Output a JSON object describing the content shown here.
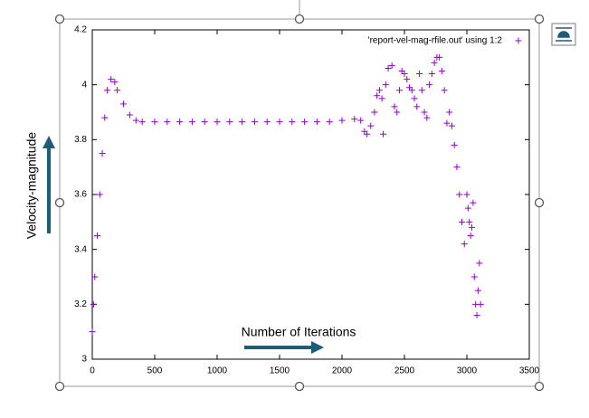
{
  "chart_data": {
    "type": "scatter",
    "xlabel": "Number of Iterations",
    "ylabel": "Velocity-magnitude",
    "xlim": [
      0,
      3500
    ],
    "xticks": [
      0,
      500,
      1000,
      1500,
      2000,
      2500,
      3000,
      3500
    ],
    "ylim": [
      3,
      4.2
    ],
    "yticks": [
      3,
      3.2,
      3.4,
      3.6,
      3.8,
      4,
      4.2
    ],
    "legend": "top-right",
    "series": [
      {
        "name": "'report-vel-mag-rfile.out' using 1:2",
        "color": "#9400d3",
        "x": [
          0,
          10,
          20,
          40,
          60,
          80,
          100,
          120,
          150,
          180,
          200,
          250,
          300,
          350,
          400,
          500,
          600,
          700,
          800,
          900,
          1000,
          1100,
          1200,
          1300,
          1400,
          1500,
          1600,
          1700,
          1800,
          1900,
          2000,
          2100,
          2150,
          2180,
          2200,
          2230,
          2260,
          2280,
          2300,
          2320,
          2330,
          2350,
          2370,
          2400,
          2420,
          2440,
          2460,
          2480,
          2500,
          2520,
          2540,
          2560,
          2580,
          2600,
          2620,
          2640,
          2660,
          2680,
          2700,
          2720,
          2740,
          2760,
          2780,
          2800,
          2820,
          2840,
          2860,
          2880,
          2900,
          2920,
          2940,
          2960,
          2980,
          3000,
          3010,
          3020,
          3030,
          3040,
          3050,
          3060,
          3070,
          3080,
          3090,
          3100,
          3110
        ],
        "values": [
          3.1,
          3.2,
          3.3,
          3.45,
          3.6,
          3.75,
          3.88,
          3.98,
          4.02,
          4.01,
          3.98,
          3.93,
          3.89,
          3.87,
          3.865,
          3.865,
          3.865,
          3.865,
          3.865,
          3.865,
          3.865,
          3.865,
          3.865,
          3.865,
          3.865,
          3.865,
          3.865,
          3.865,
          3.865,
          3.865,
          3.87,
          3.875,
          3.87,
          3.83,
          3.82,
          3.85,
          3.9,
          3.96,
          3.98,
          3.95,
          3.82,
          4.0,
          4.06,
          4.07,
          3.92,
          3.9,
          3.98,
          4.05,
          4.04,
          4.02,
          3.99,
          3.98,
          3.95,
          3.92,
          4.04,
          3.98,
          3.9,
          3.88,
          4.0,
          4.04,
          4.08,
          4.1,
          4.1,
          4.05,
          3.98,
          3.86,
          3.9,
          3.85,
          3.78,
          3.7,
          3.6,
          3.5,
          3.42,
          3.6,
          3.55,
          3.5,
          3.45,
          3.48,
          3.57,
          3.3,
          3.2,
          3.16,
          3.25,
          3.35,
          3.2
        ]
      }
    ]
  }
}
